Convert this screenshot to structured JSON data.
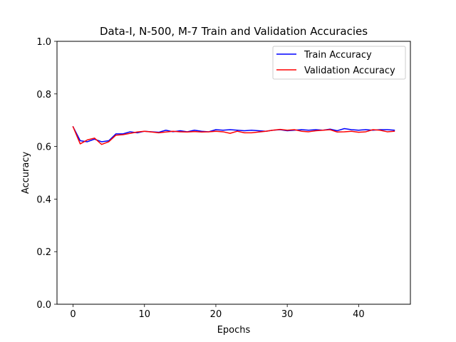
{
  "chart_data": {
    "type": "line",
    "title": "Data-I, N-500, M-7 Train and Validation Accuracies",
    "xlabel": "Epochs",
    "ylabel": "Accuracy",
    "xlim": [
      -2.25,
      47.25
    ],
    "ylim": [
      0.0,
      1.0
    ],
    "xticks": [
      0,
      10,
      20,
      30,
      40
    ],
    "xtick_labels": [
      "0",
      "10",
      "20",
      "30",
      "40"
    ],
    "yticks": [
      0.0,
      0.2,
      0.4,
      0.6,
      0.8,
      1.0
    ],
    "ytick_labels": [
      "0.0",
      "0.2",
      "0.4",
      "0.6",
      "0.8",
      "1.0"
    ],
    "grid": false,
    "legend_position": "top-right",
    "x": [
      0,
      1,
      2,
      3,
      4,
      5,
      6,
      7,
      8,
      9,
      10,
      11,
      12,
      13,
      14,
      15,
      16,
      17,
      18,
      19,
      20,
      21,
      22,
      23,
      24,
      25,
      26,
      27,
      28,
      29,
      30,
      31,
      32,
      33,
      34,
      35,
      36,
      37,
      38,
      39,
      40,
      41,
      42,
      43,
      44,
      45
    ],
    "series": [
      {
        "name": "Train Accuracy",
        "color": "#0000ff",
        "values": [
          0.675,
          0.622,
          0.618,
          0.628,
          0.618,
          0.622,
          0.648,
          0.648,
          0.656,
          0.652,
          0.658,
          0.656,
          0.654,
          0.662,
          0.656,
          0.66,
          0.656,
          0.662,
          0.658,
          0.656,
          0.664,
          0.662,
          0.664,
          0.662,
          0.66,
          0.662,
          0.66,
          0.658,
          0.662,
          0.664,
          0.66,
          0.662,
          0.664,
          0.662,
          0.664,
          0.662,
          0.666,
          0.66,
          0.668,
          0.664,
          0.662,
          0.664,
          0.662,
          0.664,
          0.664,
          0.662
        ]
      },
      {
        "name": "Validation Accuracy",
        "color": "#ff0000",
        "values": [
          0.675,
          0.61,
          0.625,
          0.632,
          0.608,
          0.618,
          0.643,
          0.645,
          0.65,
          0.655,
          0.658,
          0.655,
          0.652,
          0.655,
          0.658,
          0.656,
          0.655,
          0.657,
          0.655,
          0.656,
          0.658,
          0.656,
          0.65,
          0.658,
          0.652,
          0.652,
          0.655,
          0.658,
          0.662,
          0.665,
          0.662,
          0.664,
          0.658,
          0.656,
          0.66,
          0.662,
          0.664,
          0.655,
          0.656,
          0.658,
          0.654,
          0.656,
          0.664,
          0.662,
          0.656,
          0.658
        ]
      }
    ]
  }
}
